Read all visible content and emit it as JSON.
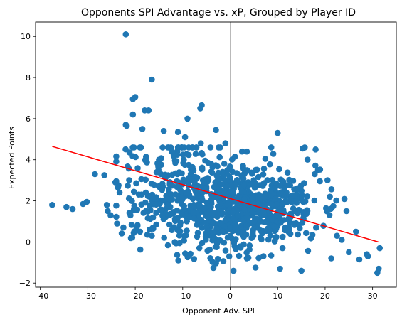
{
  "chart_data": {
    "type": "scatter",
    "title": "Opponents SPI Advantage vs. xP, Grouped by Player ID",
    "xlabel": "Opponent Adv. SPI",
    "ylabel": "Expected Points",
    "xlim": [
      -41,
      35
    ],
    "ylim": [
      -2.2,
      10.7
    ],
    "xticks": [
      -40,
      -30,
      -20,
      -10,
      0,
      10,
      20,
      30
    ],
    "yticks": [
      -2,
      0,
      2,
      4,
      6,
      8,
      10
    ],
    "grid": false,
    "reference_lines": {
      "x": 0,
      "y": 0,
      "color": "#a8a8a8"
    },
    "point_color": "#1f77b4",
    "trend_color": "#ff0000",
    "trendline": {
      "x": [
        -37.5,
        31.2
      ],
      "y": [
        4.65,
        0.0
      ]
    },
    "outliers": [
      [
        -22.0,
        10.1
      ],
      [
        -16.5,
        7.9
      ],
      [
        -20.0,
        7.05
      ],
      [
        -20.5,
        6.95
      ],
      [
        -18.0,
        6.4
      ],
      [
        -17.2,
        6.4
      ],
      [
        -20.5,
        6.2
      ],
      [
        -9.0,
        6.0
      ],
      [
        -6.0,
        6.65
      ],
      [
        -6.3,
        6.5
      ],
      [
        -18.5,
        5.5
      ],
      [
        -22.0,
        5.7
      ],
      [
        -21.8,
        5.65
      ],
      [
        -14.0,
        5.4
      ],
      [
        -11.0,
        5.35
      ],
      [
        -9.5,
        5.1
      ],
      [
        -3.0,
        5.45
      ],
      [
        -6.2,
        4.8
      ],
      [
        10.0,
        5.3
      ],
      [
        18.0,
        4.5
      ],
      [
        -37.5,
        1.8
      ],
      [
        -34.5,
        1.7
      ],
      [
        -33.2,
        1.6
      ],
      [
        -31.0,
        1.85
      ],
      [
        -30.2,
        1.95
      ],
      [
        -28.5,
        3.3
      ],
      [
        -26.5,
        3.25
      ],
      [
        -26.0,
        1.8
      ],
      [
        -25.8,
        1.5
      ],
      [
        -25.2,
        1.3
      ],
      [
        -24.2,
        2.9
      ],
      [
        -23.3,
        2.4
      ],
      [
        -22.5,
        0.7
      ],
      [
        -21.0,
        1.3
      ],
      [
        -19.0,
        0.5
      ],
      [
        -16.5,
        0.3
      ],
      [
        -6.5,
        -0.3
      ],
      [
        3.5,
        -0.8
      ],
      [
        7.0,
        -0.7
      ],
      [
        10.5,
        -1.3
      ],
      [
        15.0,
        -1.4
      ],
      [
        21.3,
        -0.8
      ],
      [
        25.0,
        -0.5
      ],
      [
        27.2,
        -0.85
      ],
      [
        28.8,
        -0.6
      ],
      [
        31.3,
        -1.3
      ],
      [
        31.0,
        -1.5
      ],
      [
        31.5,
        -0.3
      ],
      [
        26.5,
        0.5
      ],
      [
        29.0,
        -0.7
      ],
      [
        22.5,
        0.3
      ],
      [
        23.5,
        0.1
      ],
      [
        18.5,
        3.5
      ],
      [
        17.8,
        3.3
      ],
      [
        20.5,
        3.0
      ],
      [
        21.0,
        2.2
      ],
      [
        24.5,
        1.5
      ],
      [
        -12.5,
        4.6
      ],
      [
        -15.0,
        4.0
      ],
      [
        -1.0,
        4.8
      ],
      [
        1.0,
        4.15
      ],
      [
        3.5,
        4.4
      ],
      [
        2.5,
        4.4
      ],
      [
        -8.0,
        4.6
      ],
      [
        -4.0,
        3.8
      ]
    ],
    "clusters": [
      {
        "cx": 5.0,
        "cy": 1.6,
        "sx": 7.0,
        "sy": 1.05,
        "n": 520,
        "seed": 11
      },
      {
        "cx": -15.0,
        "cy": 2.6,
        "sx": 5.0,
        "sy": 1.25,
        "n": 170,
        "seed": 23
      },
      {
        "cx": -5.0,
        "cy": 2.2,
        "sx": 5.0,
        "sy": 1.35,
        "n": 230,
        "seed": 37
      }
    ]
  }
}
